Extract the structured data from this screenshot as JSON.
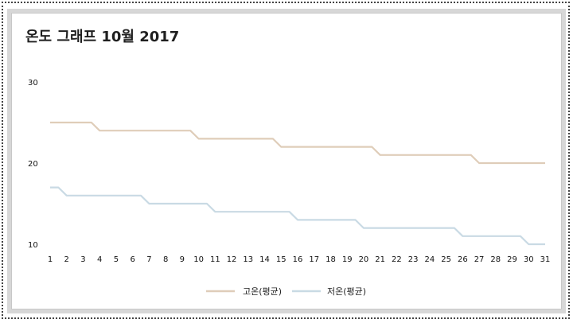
{
  "colors": {
    "high": "#dfcdb9",
    "low": "#c9dae4"
  },
  "chart_data": {
    "type": "line",
    "title": "온도 그래프 10월 2017",
    "xlabel": "",
    "ylabel": "",
    "x": [
      1,
      2,
      3,
      4,
      5,
      6,
      7,
      8,
      9,
      10,
      11,
      12,
      13,
      14,
      15,
      16,
      17,
      18,
      19,
      20,
      21,
      22,
      23,
      24,
      25,
      26,
      27,
      28,
      29,
      30,
      31
    ],
    "ylim": [
      10,
      30
    ],
    "yticks": [
      10,
      20,
      30
    ],
    "grid": false,
    "legend_position": "bottom",
    "series": [
      {
        "name": "고온(평균)",
        "color": "#dfcdb9",
        "values": [
          25,
          25,
          25,
          24,
          24,
          24,
          24,
          24,
          24,
          23,
          23,
          23,
          23,
          23,
          22,
          22,
          22,
          22,
          22,
          22,
          21,
          21,
          21,
          21,
          21,
          21,
          20,
          20,
          20,
          20,
          20
        ]
      },
      {
        "name": "저온(평균)",
        "color": "#c9dae4",
        "values": [
          17,
          16,
          16,
          16,
          16,
          16,
          15,
          15,
          15,
          15,
          14,
          14,
          14,
          14,
          14,
          13,
          13,
          13,
          13,
          12,
          12,
          12,
          12,
          12,
          12,
          11,
          11,
          11,
          11,
          10,
          10
        ]
      }
    ]
  }
}
